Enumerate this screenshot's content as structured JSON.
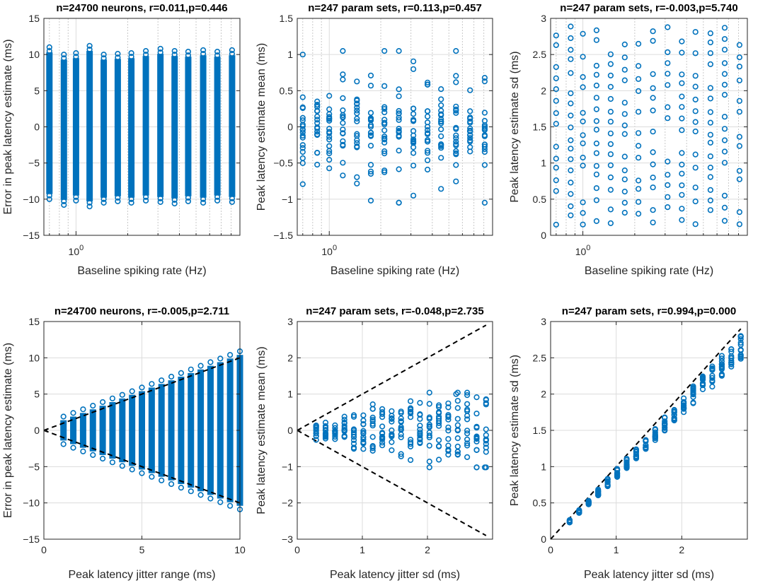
{
  "colors": {
    "marker": "#0072BD",
    "axis": "#262626",
    "grid": "#dcdcdc",
    "reference_line": "#000000"
  },
  "chart_data": [
    {
      "type": "scatter",
      "title": "n=24700 neurons, r=0.011,p=0.446",
      "xlabel": "Baseline spiking rate (Hz)",
      "ylabel": "Error in peak latency estimate (ms)",
      "xscale": "log",
      "xlim": [
        0.65,
        9.0
      ],
      "ylim": [
        -15,
        15
      ],
      "xticks": [
        1
      ],
      "xtick_labels": [
        "10^0"
      ],
      "yticks": [
        -15,
        -10,
        -5,
        0,
        5,
        10,
        15
      ],
      "grid": "on",
      "marker": "open circle",
      "rate_columns": [
        0.7,
        0.85,
        1.0,
        1.2,
        1.45,
        1.75,
        2.1,
        2.55,
        3.1,
        3.75,
        4.5,
        5.5,
        6.65,
        8.1
      ],
      "column_range": [
        [
          -10,
          11
        ],
        [
          -10.8,
          10
        ],
        [
          -10.2,
          10.2
        ],
        [
          -11,
          11.2
        ],
        [
          -10.5,
          10
        ],
        [
          -10.3,
          10.1
        ],
        [
          -10.5,
          10.2
        ],
        [
          -10.2,
          10.5
        ],
        [
          -10.4,
          10.8
        ],
        [
          -10.6,
          10.5
        ],
        [
          -10.3,
          10.4
        ],
        [
          -10.5,
          10.6
        ],
        [
          -10.2,
          10.4
        ],
        [
          -10.4,
          10.6
        ]
      ],
      "series": [
        {
          "n": 24700
        }
      ]
    },
    {
      "type": "scatter",
      "title": "n=247 param sets, r=0.113,p=0.457",
      "xlabel": "Baseline spiking rate (Hz)",
      "ylabel": "Peak latency estimate mean (ms)",
      "xscale": "log",
      "xlim": [
        0.65,
        9.0
      ],
      "ylim": [
        -1.5,
        1.5
      ],
      "xticks": [
        1
      ],
      "xtick_labels": [
        "10^0"
      ],
      "yticks": [
        -1.5,
        -1,
        -0.5,
        0,
        0.5,
        1,
        1.5
      ],
      "ytick_labels": [
        "-1.5",
        "-1",
        "-0.5",
        "0",
        "0.5",
        "1",
        "1.5"
      ],
      "grid": "on",
      "marker": "open circle",
      "series": [
        {
          "n": 247
        }
      ]
    },
    {
      "type": "scatter",
      "title": "n=247 param sets, r=-0.003,p=5.740",
      "xlabel": "Baseline spiking rate (Hz)",
      "ylabel": "Peak latency estimate sd (ms)",
      "xscale": "log",
      "xlim": [
        0.65,
        9.0
      ],
      "ylim": [
        0,
        3
      ],
      "xticks": [
        1
      ],
      "xtick_labels": [
        "10^0"
      ],
      "yticks": [
        0,
        0.5,
        1,
        1.5,
        2,
        2.5,
        3
      ],
      "ytick_labels": [
        "0",
        "0.5",
        "1",
        "1.5",
        "2",
        "2.5",
        "3"
      ],
      "grid": "on",
      "marker": "open circle",
      "series": [
        {
          "n": 247
        }
      ]
    },
    {
      "type": "scatter",
      "title": "n=24700 neurons, r=-0.005,p=2.711",
      "xlabel": "Peak latency jitter range (ms)",
      "ylabel": "Error in peak latency estimate (ms)",
      "xlim": [
        0,
        10
      ],
      "ylim": [
        -15,
        15
      ],
      "xticks": [
        0,
        5,
        10
      ],
      "xtick_labels": [
        "0",
        "5",
        "10"
      ],
      "yticks": [
        -15,
        -10,
        -5,
        0,
        5,
        10,
        15
      ],
      "grid": "on",
      "marker": "open circle",
      "reference_lines": [
        {
          "x": [
            0,
            10
          ],
          "y": [
            0,
            10
          ],
          "style": "dashed"
        },
        {
          "x": [
            0,
            10
          ],
          "y": [
            0,
            -10
          ],
          "style": "dashed"
        }
      ],
      "jitter_ranges": [
        1.0,
        1.5,
        2.0,
        2.5,
        3.0,
        3.5,
        4.0,
        4.5,
        5.0,
        5.5,
        6.0,
        6.5,
        7.0,
        7.5,
        8.0,
        8.5,
        9.0,
        9.5,
        10.0
      ],
      "series": [
        {
          "n": 24700
        }
      ]
    },
    {
      "type": "scatter",
      "title": "n=247 param sets, r=-0.048,p=2.735",
      "xlabel": "Peak latency jitter sd (ms)",
      "ylabel": "Peak latency estimate mean (ms)",
      "xlim": [
        0,
        3
      ],
      "ylim": [
        -3,
        3
      ],
      "xticks": [
        0,
        1,
        2
      ],
      "xtick_labels": [
        "0",
        "1",
        "2"
      ],
      "yticks": [
        -3,
        -2,
        -1,
        0,
        1,
        2,
        3
      ],
      "grid": "on",
      "marker": "open circle",
      "reference_lines": [
        {
          "x": [
            0,
            2.9
          ],
          "y": [
            0,
            2.9
          ],
          "style": "dashed"
        },
        {
          "x": [
            0,
            2.9
          ],
          "y": [
            0,
            -2.9
          ],
          "style": "dashed"
        }
      ],
      "series": [
        {
          "n": 247
        }
      ]
    },
    {
      "type": "scatter",
      "title": "n=247 param sets, r=0.994,p=0.000",
      "xlabel": "Peak latency jitter sd (ms)",
      "ylabel": "Peak latency estimate sd (ms)",
      "xlim": [
        0,
        3
      ],
      "ylim": [
        0,
        3
      ],
      "xticks": [
        0,
        1,
        2
      ],
      "xtick_labels": [
        "0",
        "1",
        "2"
      ],
      "yticks": [
        0,
        0.5,
        1,
        1.5,
        2,
        2.5,
        3
      ],
      "ytick_labels": [
        "0",
        "0.5",
        "1",
        "1.5",
        "2",
        "2.5",
        "3"
      ],
      "grid": "on",
      "marker": "open circle",
      "reference_lines": [
        {
          "x": [
            0,
            2.9
          ],
          "y": [
            0,
            2.9
          ],
          "style": "dashed"
        }
      ],
      "series": [
        {
          "n": 247
        }
      ]
    }
  ]
}
